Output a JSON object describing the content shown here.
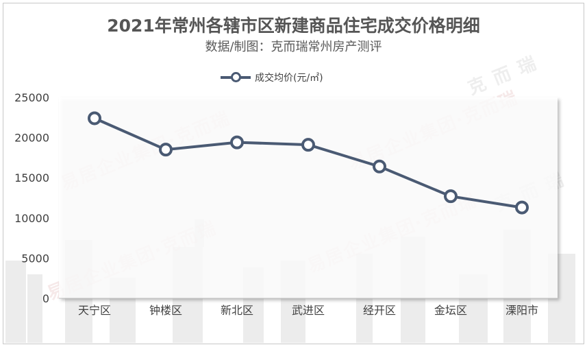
{
  "chart_data": {
    "type": "line",
    "title": "2021年常州各辖市区新建商品住宅成交价格明细",
    "subtitle": "数据/制图：克而瑞常州房产测评",
    "categories": [
      "天宁区",
      "钟楼区",
      "新北区",
      "武进区",
      "经开区",
      "金坛区",
      "溧阳市"
    ],
    "series": [
      {
        "name": "成交均价(元/㎡)",
        "values": [
          22400,
          18500,
          19400,
          19100,
          16400,
          12700,
          11300
        ],
        "color": "#4a5a73"
      }
    ],
    "ylim": [
      0,
      25000
    ],
    "yticks": [
      0,
      5000,
      10000,
      15000,
      20000,
      25000
    ],
    "xlabel": "",
    "ylabel": "",
    "grid": false,
    "legend_position": "top"
  },
  "watermarks": {
    "brand_a": "易居企业集团·克而瑞",
    "brand_b": "克 而 瑞"
  },
  "colors": {
    "series_line": "#4a5a73",
    "axis_text": "#404040",
    "title_text": "#555555"
  }
}
